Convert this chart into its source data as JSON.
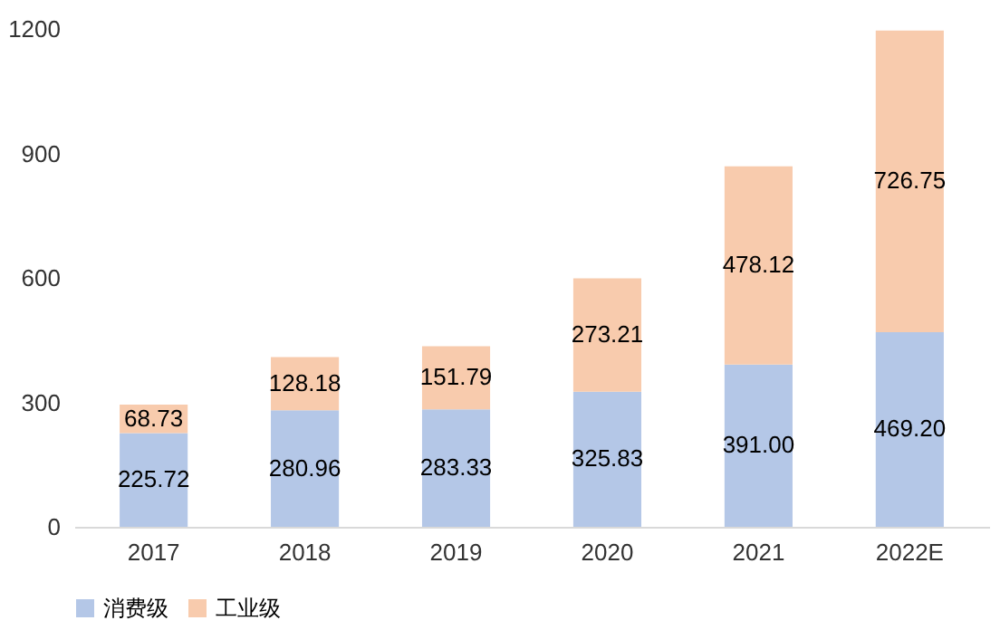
{
  "chart_data": {
    "type": "bar",
    "stacked": true,
    "categories": [
      "2017",
      "2018",
      "2019",
      "2020",
      "2021",
      "2022E"
    ],
    "series": [
      {
        "name": "消费级",
        "color": "#b4c7e7",
        "values": [
          225.72,
          280.96,
          283.33,
          325.83,
          391.0,
          469.2
        ],
        "value_labels": [
          "225.72",
          "280.96",
          "283.33",
          "325.83",
          "391.00",
          "469.20"
        ]
      },
      {
        "name": "工业级",
        "color": "#f8cbad",
        "values": [
          68.73,
          128.18,
          151.79,
          273.21,
          478.12,
          726.75
        ],
        "value_labels": [
          "68.73",
          "128.18",
          "151.79",
          "273.21",
          "478.12",
          "726.75"
        ]
      }
    ],
    "ylim": [
      0,
      1200
    ],
    "yticks": [
      0,
      300,
      600,
      900,
      1200
    ],
    "grid": false,
    "legend": "bottom"
  }
}
